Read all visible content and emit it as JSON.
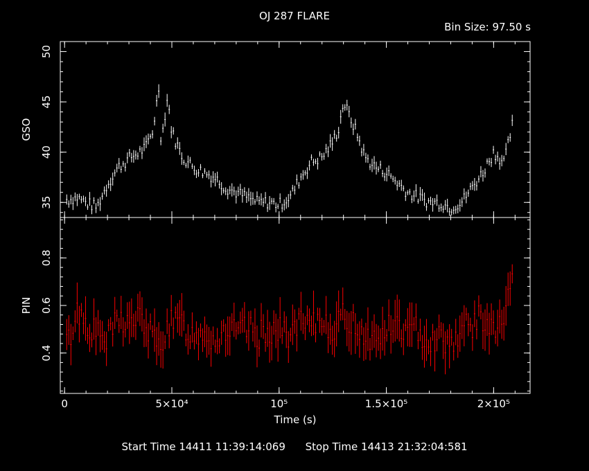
{
  "title": "OJ 287 FLARE",
  "bin_size_label": "Bin Size: 97.50 s",
  "footer": {
    "start": "Start Time 14411 11:39:14:069",
    "stop": "Stop Time 14413 21:32:04:581"
  },
  "colors": {
    "gso": "#ffffff",
    "pin": "#ff0000",
    "axes": "#ffffff",
    "background": "#000000"
  },
  "chart_data": [
    {
      "type": "scatter",
      "panel": "top",
      "ylabel": "GSO",
      "xlabel": "",
      "xlim": [
        -2000,
        217000
      ],
      "ylim": [
        33.5,
        51
      ],
      "yticks": [
        35,
        40,
        45,
        50
      ],
      "series": [
        {
          "x": [
            2000,
            6000,
            10000,
            15000,
            20000,
            25000,
            28000,
            31000,
            35000,
            38000,
            41000,
            44000,
            45000,
            48000,
            50000,
            55000,
            60000,
            65000,
            70000,
            75000,
            80000,
            85000,
            90000,
            95000,
            100000,
            105000,
            110000,
            115000,
            120000,
            125000,
            128000,
            130000,
            133000,
            136000,
            140000,
            145000,
            150000,
            155000,
            160000,
            165000,
            170000,
            175000,
            180000,
            185000,
            190000,
            195000,
            200000,
            205000,
            209000
          ],
          "values": [
            35.3,
            35.5,
            35.0,
            34.5,
            36.8,
            38.5,
            39.0,
            39.5,
            40.0,
            40.5,
            42.0,
            46.5,
            41.0,
            45.5,
            42.0,
            39.5,
            38.5,
            38.0,
            37.5,
            36.5,
            36.0,
            35.5,
            35.0,
            35.0,
            34.8,
            35.5,
            37.5,
            39.0,
            39.5,
            41.0,
            42.5,
            45.0,
            43.5,
            42.0,
            39.5,
            38.5,
            38.0,
            37.0,
            36.0,
            35.5,
            35.0,
            35.0,
            34.5,
            35.0,
            36.5,
            38.0,
            40.0,
            39.0,
            43.0
          ]
        }
      ]
    },
    {
      "type": "scatter",
      "panel": "bottom",
      "ylabel": "PIN",
      "xlabel": "Time (s)",
      "xlim": [
        -2000,
        217000
      ],
      "ylim": [
        0.23,
        0.97
      ],
      "yticks": [
        0.4,
        0.6,
        0.8
      ],
      "xticks": [
        0,
        50000,
        100000,
        150000,
        200000
      ],
      "xtick_labels": [
        "0",
        "5×10⁴",
        "10⁵",
        "1.5×10⁵",
        "2×10⁵"
      ],
      "series": [
        {
          "x": [
            2000,
            6000,
            10000,
            15000,
            20000,
            25000,
            30000,
            35000,
            40000,
            44000,
            48000,
            55000,
            60000,
            65000,
            70000,
            75000,
            80000,
            85000,
            90000,
            95000,
            100000,
            105000,
            110000,
            115000,
            120000,
            125000,
            130000,
            135000,
            140000,
            145000,
            150000,
            155000,
            160000,
            165000,
            170000,
            175000,
            180000,
            185000,
            190000,
            195000,
            200000,
            205000,
            209000
          ],
          "values": [
            0.45,
            0.58,
            0.53,
            0.48,
            0.45,
            0.55,
            0.52,
            0.55,
            0.48,
            0.42,
            0.52,
            0.52,
            0.47,
            0.5,
            0.45,
            0.5,
            0.48,
            0.5,
            0.47,
            0.5,
            0.49,
            0.48,
            0.52,
            0.5,
            0.55,
            0.5,
            0.55,
            0.52,
            0.48,
            0.45,
            0.5,
            0.52,
            0.48,
            0.5,
            0.45,
            0.47,
            0.44,
            0.5,
            0.52,
            0.55,
            0.48,
            0.55,
            0.7
          ]
        }
      ]
    }
  ]
}
